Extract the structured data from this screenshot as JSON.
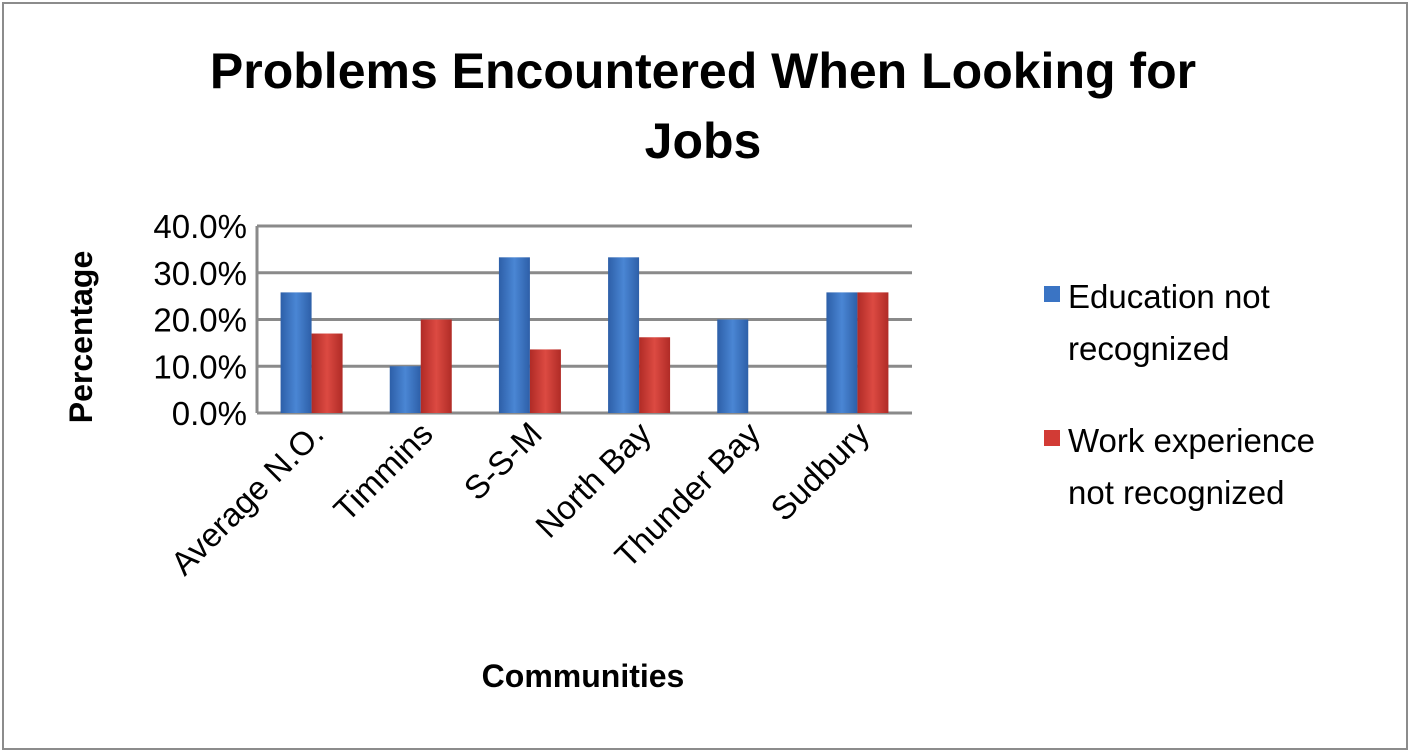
{
  "chart_data": {
    "type": "bar",
    "title_lines": [
      "Problems Encountered When Looking for",
      "Jobs"
    ],
    "xlabel": "Communities",
    "ylabel": "Percentage",
    "ylim": [
      0,
      40
    ],
    "yticks": [
      "0.0%",
      "10.0%",
      "20.0%",
      "30.0%",
      "40.0%"
    ],
    "ytick_values": [
      0,
      10,
      20,
      30,
      40
    ],
    "categories": [
      "Average N.O.",
      "Timmins",
      "S-S-M",
      "North Bay",
      "Thunder Bay",
      "Sudbury"
    ],
    "series": [
      {
        "name": "Education not recognized",
        "name_lines": [
          "Education not",
          "recognized"
        ],
        "color": "#3a74c4",
        "values": [
          25.8,
          10.0,
          33.3,
          33.3,
          20.0,
          25.8
        ]
      },
      {
        "name": "Work experience not recognized",
        "name_lines": [
          "Work experience",
          "not recognized"
        ],
        "color": "#d23b35",
        "values": [
          17.0,
          20.0,
          13.6,
          16.2,
          0,
          25.8
        ]
      }
    ],
    "grid": true,
    "legend_position": "right"
  }
}
